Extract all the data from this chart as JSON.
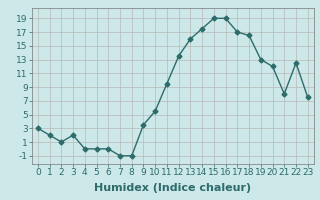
{
  "x": [
    0,
    1,
    2,
    3,
    4,
    5,
    6,
    7,
    8,
    9,
    10,
    11,
    12,
    13,
    14,
    15,
    16,
    17,
    18,
    19,
    20,
    21,
    22,
    23
  ],
  "y": [
    3,
    2,
    1,
    2,
    0,
    0,
    0,
    -1,
    -1,
    3.5,
    5.5,
    9.5,
    13.5,
    16,
    17.5,
    19,
    19,
    17,
    16.5,
    13,
    12,
    8,
    12.5,
    7.5
  ],
  "line_color": "#2e6b6b",
  "marker": "D",
  "marker_size": 2.5,
  "bg_color": "#cce8e8",
  "grid_color": "#b8b8b8",
  "xlabel": "Humidex (Indice chaleur)",
  "xlim": [
    -0.5,
    23.5
  ],
  "ylim": [
    -2.2,
    20.5
  ],
  "yticks": [
    -1,
    1,
    3,
    5,
    7,
    9,
    11,
    13,
    15,
    17,
    19
  ],
  "xtick_labels": [
    "0",
    "1",
    "2",
    "3",
    "4",
    "5",
    "6",
    "7",
    "8",
    "9",
    "10",
    "11",
    "12",
    "13",
    "14",
    "15",
    "16",
    "17",
    "18",
    "19",
    "20",
    "21",
    "22",
    "23"
  ],
  "xlabel_fontsize": 8,
  "tick_fontsize": 6.5,
  "line_width": 1.0
}
